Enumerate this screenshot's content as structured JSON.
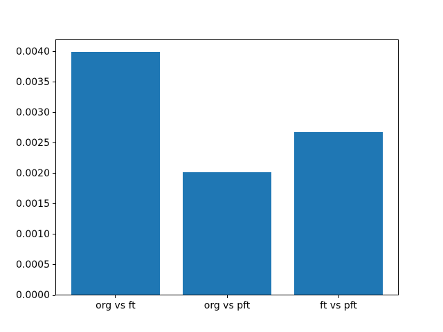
{
  "figure": {
    "background": "#ffffff",
    "axis_color": "#000000",
    "label_color": "#000000"
  },
  "chart_data": {
    "type": "bar",
    "title": "",
    "xlabel": "",
    "ylabel": "",
    "categories": [
      "org vs ft",
      "org vs pft",
      "ft vs pft"
    ],
    "values": [
      0.004,
      0.00202,
      0.00268
    ],
    "bar_color": "#1f77b4",
    "bar_width": 0.8,
    "xlim": [
      -0.54,
      2.54
    ],
    "ylim": [
      0,
      0.0042
    ],
    "yticks": [
      0.0,
      0.0005,
      0.001,
      0.0015,
      0.002,
      0.0025,
      0.003,
      0.0035,
      0.004
    ],
    "ytick_labels": [
      "0.0000",
      "0.0005",
      "0.0010",
      "0.0015",
      "0.0020",
      "0.0025",
      "0.0030",
      "0.0035",
      "0.0040"
    ],
    "grid": false,
    "legend": false
  }
}
